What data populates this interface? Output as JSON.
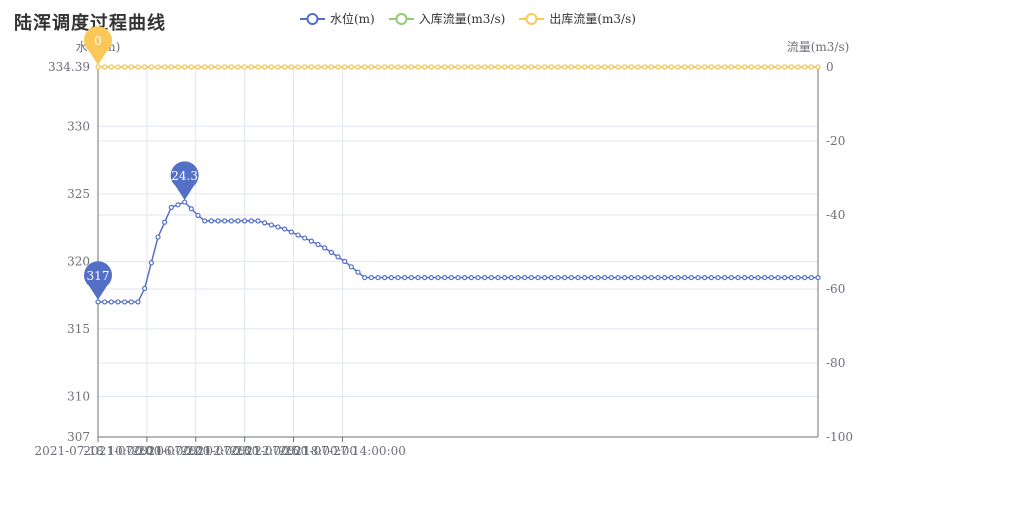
{
  "title": "陆浑调度过程曲线",
  "chart_data": {
    "type": "line",
    "title": "陆浑调度过程曲线",
    "y_left": {
      "label": "水位(m)",
      "min": 307,
      "max": 334.39,
      "ticks": [
        307,
        310,
        315,
        320,
        325,
        330,
        334.39
      ]
    },
    "y_right": {
      "label": "流量(m3/s)",
      "min": -100,
      "max": 0,
      "ticks": [
        -100,
        -80,
        -60,
        -40,
        -20,
        0
      ]
    },
    "x_start": "2021-07-18 10:00:00",
    "x_step_hours": 6,
    "x_count": 109,
    "x_labels": [
      "2021-07-18 10:00:00",
      "2021-07-20 06:00:00",
      "2021-07-22 02:00:00",
      "2021-07-23 22:00:00",
      "2021-07-25 18:00:00",
      "2021-07-27 14:00:00"
    ],
    "legend_position": "top-center",
    "grid": true,
    "series": [
      {
        "name": "水位(m)",
        "axis": "left",
        "color": "#5470c6",
        "keypoints": [
          [
            "2021-07-18 10:00:00",
            317
          ],
          [
            "2021-07-19 22:00:00",
            317
          ],
          [
            "2021-07-20 04:00:00",
            318
          ],
          [
            "2021-07-20 16:00:00",
            321.8
          ],
          [
            "2021-07-21 04:00:00",
            324
          ],
          [
            "2021-07-21 16:00:00",
            324.39
          ],
          [
            "2021-07-22 04:00:00",
            323.4
          ],
          [
            "2021-07-22 10:00:00",
            323
          ],
          [
            "2021-07-24 10:00:00",
            323
          ],
          [
            "2021-07-25 10:00:00",
            322.4
          ],
          [
            "2021-07-26 10:00:00",
            321.5
          ],
          [
            "2021-07-26 22:00:00",
            321
          ],
          [
            "2021-07-27 16:00:00",
            320
          ],
          [
            "2021-07-28 10:00:00",
            318.8
          ]
        ],
        "mark_points": [
          {
            "x": "2021-07-18 10:00:00",
            "value": "317"
          },
          {
            "x": "2021-07-21 16:00:00",
            "value": "324.39"
          }
        ]
      },
      {
        "name": "入库流量(m3/s)",
        "axis": "right",
        "color": "#91cc75",
        "keypoints": [
          [
            "2021-07-18 10:00:00",
            0
          ],
          [
            "2021-07-28 10:00:00",
            0
          ]
        ],
        "mark_points": []
      },
      {
        "name": "出库流量(m3/s)",
        "axis": "right",
        "color": "#fac858",
        "keypoints": [
          [
            "2021-07-18 10:00:00",
            0
          ],
          [
            "2021-07-28 10:00:00",
            0
          ]
        ],
        "mark_points": [
          {
            "x": "2021-07-18 10:00:00",
            "value": "0"
          }
        ]
      }
    ]
  }
}
